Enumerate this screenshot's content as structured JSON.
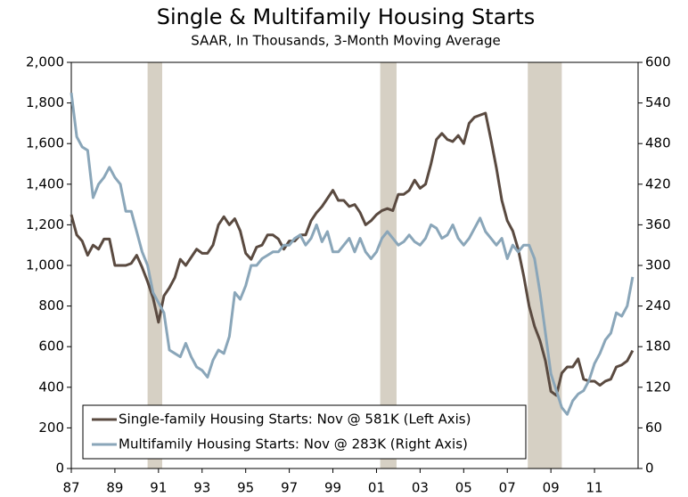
{
  "chart_data": {
    "type": "line",
    "title": "Single & Multifamily Housing Starts",
    "subtitle": "SAAR, In Thousands, 3-Month Moving Average",
    "x": [
      1987,
      1987.25,
      1987.5,
      1987.75,
      1988,
      1988.25,
      1988.5,
      1988.75,
      1989,
      1989.25,
      1989.5,
      1989.75,
      1990,
      1990.25,
      1990.5,
      1990.75,
      1991,
      1991.25,
      1991.5,
      1991.75,
      1992,
      1992.25,
      1992.5,
      1992.75,
      1993,
      1993.25,
      1993.5,
      1993.75,
      1994,
      1994.25,
      1994.5,
      1994.75,
      1995,
      1995.25,
      1995.5,
      1995.75,
      1996,
      1996.25,
      1996.5,
      1996.75,
      1997,
      1997.25,
      1997.5,
      1997.75,
      1998,
      1998.25,
      1998.5,
      1998.75,
      1999,
      1999.25,
      1999.5,
      1999.75,
      2000,
      2000.25,
      2000.5,
      2000.75,
      2001,
      2001.25,
      2001.5,
      2001.75,
      2002,
      2002.25,
      2002.5,
      2002.75,
      2003,
      2003.25,
      2003.5,
      2003.75,
      2004,
      2004.25,
      2004.5,
      2004.75,
      2005,
      2005.25,
      2005.5,
      2005.75,
      2006,
      2006.25,
      2006.5,
      2006.75,
      2007,
      2007.25,
      2007.5,
      2007.75,
      2008,
      2008.25,
      2008.5,
      2008.75,
      2009,
      2009.25,
      2009.5,
      2009.75,
      2010,
      2010.25,
      2010.5,
      2010.75,
      2011,
      2011.25,
      2011.5,
      2011.75,
      2012,
      2012.25,
      2012.5,
      2012.75
    ],
    "series": [
      {
        "name": "Single-family Housing Starts: Nov @ 581K (Left Axis)",
        "color": "#5a4a40",
        "values": [
          1250,
          1150,
          1120,
          1050,
          1100,
          1080,
          1130,
          1130,
          1000,
          1000,
          1000,
          1010,
          1050,
          990,
          920,
          840,
          720,
          850,
          890,
          940,
          1030,
          1000,
          1040,
          1080,
          1060,
          1060,
          1100,
          1200,
          1240,
          1200,
          1230,
          1170,
          1060,
          1030,
          1090,
          1100,
          1150,
          1150,
          1130,
          1080,
          1120,
          1120,
          1150,
          1150,
          1220,
          1260,
          1290,
          1330,
          1370,
          1320,
          1320,
          1290,
          1300,
          1260,
          1200,
          1220,
          1250,
          1270,
          1280,
          1270,
          1350,
          1350,
          1370,
          1420,
          1380,
          1400,
          1500,
          1620,
          1650,
          1620,
          1610,
          1640,
          1600,
          1700,
          1730,
          1740,
          1750,
          1620,
          1480,
          1320,
          1220,
          1170,
          1080,
          950,
          800,
          700,
          630,
          530,
          380,
          360,
          470,
          500,
          500,
          540,
          440,
          430,
          430,
          410,
          430,
          440,
          500,
          510,
          530,
          581
        ]
      },
      {
        "name": "Multifamily Housing Starts: Nov @ 283K (Right Axis)",
        "color": "#8aa6b9",
        "axis": "y2",
        "values": [
          555,
          490,
          475,
          470,
          400,
          420,
          430,
          445,
          430,
          420,
          380,
          380,
          350,
          320,
          300,
          260,
          245,
          230,
          175,
          170,
          165,
          185,
          165,
          150,
          145,
          135,
          160,
          175,
          170,
          195,
          260,
          250,
          270,
          300,
          300,
          310,
          315,
          320,
          320,
          330,
          330,
          340,
          345,
          330,
          340,
          360,
          335,
          350,
          320,
          320,
          330,
          340,
          320,
          340,
          320,
          310,
          320,
          340,
          350,
          340,
          330,
          335,
          345,
          335,
          330,
          340,
          360,
          355,
          340,
          345,
          360,
          340,
          330,
          340,
          355,
          370,
          350,
          340,
          330,
          340,
          310,
          330,
          320,
          330,
          330,
          310,
          260,
          200,
          140,
          115,
          90,
          80,
          100,
          110,
          115,
          130,
          155,
          170,
          190,
          200,
          230,
          225,
          240,
          283
        ]
      }
    ],
    "recessions": [
      [
        1990.5,
        1991.17
      ],
      [
        2001.17,
        2001.92
      ],
      [
        2007.94,
        2009.5
      ]
    ],
    "recession_color": "#d6d0c4",
    "xlim": [
      1987,
      2013
    ],
    "xticks": [
      {
        "value": 1987,
        "label": "87"
      },
      {
        "value": 1989,
        "label": "89"
      },
      {
        "value": 1991,
        "label": "91"
      },
      {
        "value": 1993,
        "label": "93"
      },
      {
        "value": 1995,
        "label": "95"
      },
      {
        "value": 1997,
        "label": "97"
      },
      {
        "value": 1999,
        "label": "99"
      },
      {
        "value": 2001,
        "label": "01"
      },
      {
        "value": 2003,
        "label": "03"
      },
      {
        "value": 2005,
        "label": "05"
      },
      {
        "value": 2007,
        "label": "07"
      },
      {
        "value": 2009,
        "label": "09"
      },
      {
        "value": 2011,
        "label": "11"
      }
    ],
    "ylim": [
      0,
      2000
    ],
    "yticks": [
      0,
      200,
      400,
      600,
      800,
      {
        "value": 1000,
        "label": "1,000"
      },
      {
        "value": 1200,
        "label": "1,200"
      },
      {
        "value": 1400,
        "label": "1,400"
      },
      {
        "value": 1600,
        "label": "1,600"
      },
      {
        "value": 1800,
        "label": "1,800"
      },
      {
        "value": 2000,
        "label": "2,000"
      }
    ],
    "y2lim": [
      0,
      600
    ],
    "y2ticks": [
      0,
      60,
      120,
      180,
      240,
      300,
      360,
      420,
      480,
      540,
      600
    ],
    "legend": "lower-left"
  }
}
